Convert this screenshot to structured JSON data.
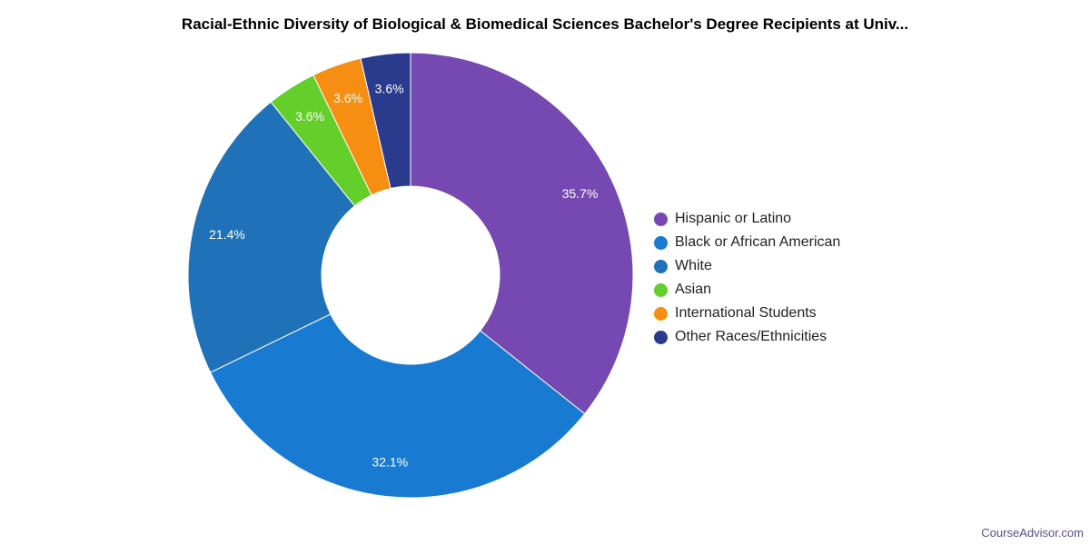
{
  "chart_data": {
    "type": "pie",
    "variant": "donut",
    "title": "Racial-Ethnic Diversity of Biological & Biomedical Sciences Bachelor's Degree Recipients at Univ...",
    "slices": [
      {
        "name": "Hispanic or Latino",
        "value": 35.7,
        "label": "35.7%",
        "color": "#7549b1"
      },
      {
        "name": "Black or African American",
        "value": 32.1,
        "label": "32.1%",
        "color": "#187bd1"
      },
      {
        "name": "White",
        "value": 21.4,
        "label": "21.4%",
        "color": "#1f72b8"
      },
      {
        "name": "Asian",
        "value": 3.6,
        "label": "3.6%",
        "color": "#64ce2a"
      },
      {
        "name": "International Students",
        "value": 3.6,
        "label": "3.6%",
        "color": "#f68e12"
      },
      {
        "name": "Other Races/Ethnicities",
        "value": 3.6,
        "label": "3.6%",
        "color": "#2a3b8d"
      }
    ],
    "legend_position": "right"
  },
  "watermark": "CourseAdvisor.com"
}
